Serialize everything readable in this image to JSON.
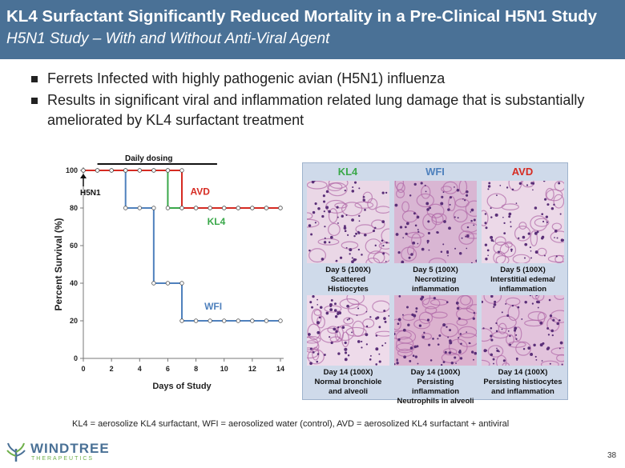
{
  "header": {
    "title": "KL4 Surfactant Significantly Reduced Mortality in a Pre-Clinical H5N1 Study",
    "subtitle": "H5N1 Study – With and Without Anti-Viral Agent"
  },
  "bullets": [
    "Ferrets Infected with highly pathogenic avian (H5N1) influenza",
    "Results in significant viral and inflammation related lung damage that is substantially ameliorated by KL4 surfactant treatment"
  ],
  "chart_data": {
    "type": "line",
    "xlabel": "Days of Study",
    "ylabel": "Percent Survival (%)",
    "xlim": [
      0,
      14
    ],
    "ylim": [
      0,
      100
    ],
    "x_ticks": [
      0,
      2,
      4,
      6,
      8,
      10,
      12,
      14
    ],
    "y_ticks": [
      0,
      20,
      40,
      60,
      80,
      100
    ],
    "grid": false,
    "annotations": {
      "daily_dosing": "Daily dosing",
      "daily_dosing_range": [
        1,
        9.5
      ],
      "infection_label": "H5N1",
      "infection_day": 0
    },
    "series": [
      {
        "name": "WFI",
        "color": "#4f81bd",
        "x": [
          0,
          1,
          2,
          3,
          4,
          5,
          6,
          7,
          8,
          9,
          10,
          11,
          12,
          13,
          14
        ],
        "y": [
          100,
          100,
          100,
          80,
          80,
          40,
          40,
          20,
          20,
          20,
          20,
          20,
          20,
          20,
          20
        ]
      },
      {
        "name": "KL4",
        "color": "#3aa84a",
        "x": [
          0,
          1,
          2,
          3,
          4,
          5,
          6,
          7,
          8,
          9,
          10,
          11,
          12,
          13,
          14
        ],
        "y": [
          100,
          100,
          100,
          100,
          100,
          100,
          80,
          80,
          80,
          80,
          80,
          80,
          80,
          80,
          80
        ]
      },
      {
        "name": "AVD",
        "color": "#d62b22",
        "x": [
          0,
          1,
          2,
          3,
          4,
          5,
          6,
          7,
          8,
          9,
          10,
          11,
          12,
          13,
          14
        ],
        "y": [
          100,
          100,
          100,
          100,
          100,
          100,
          100,
          80,
          80,
          80,
          80,
          80,
          80,
          80,
          80
        ]
      }
    ]
  },
  "histology": {
    "columns": [
      {
        "label": "KL4",
        "color": "#3aa84a"
      },
      {
        "label": "WFI",
        "color": "#4f81bd"
      },
      {
        "label": "AVD",
        "color": "#d62b22"
      }
    ],
    "day5": [
      {
        "line1": "Day 5 (100X)",
        "line2": "Scattered",
        "line3": "Histiocytes"
      },
      {
        "line1": "Day 5 (100X)",
        "line2": "Necrotizing",
        "line3": "inflammation"
      },
      {
        "line1": "Day 5 (100X)",
        "line2": "Interstitial edema/",
        "line3": "inflammation"
      }
    ],
    "day14": [
      {
        "line1": "Day 14 (100X)",
        "line2": "Normal bronchiole",
        "line3": "and alveoli"
      },
      {
        "line1": "Day 14 (100X)",
        "line2": "Persisting inflammation",
        "line3": "Neutrophils in alveoli"
      },
      {
        "line1": "Day 14 (100X)",
        "line2": "Persisting histiocytes",
        "line3": "and inflammation"
      }
    ]
  },
  "footnote": "KL4 = aerosolize KL4 surfactant, WFI = aerosolized water (control), AVD = aerosolized KL4 surfactant + antiviral",
  "logo": {
    "name": "WINDTREE",
    "tagline": "THERAPEUTICS"
  },
  "page_number": "38"
}
